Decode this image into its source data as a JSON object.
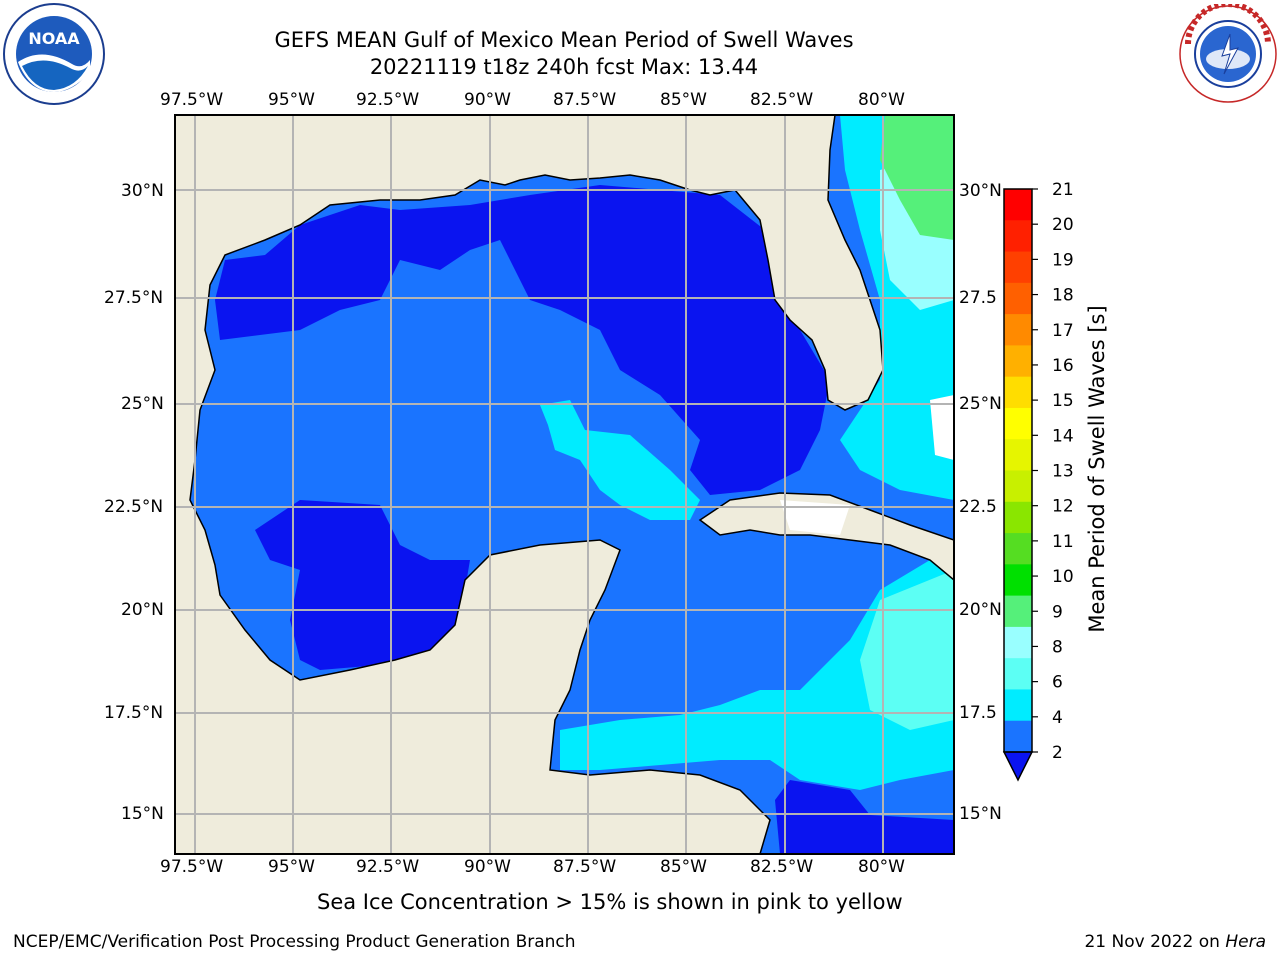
{
  "title": {
    "line1": "GEFS MEAN Gulf of Mexico Mean Period of Swell Waves",
    "line2": "20221119 t18z 240h fcst   Max: 13.44"
  },
  "logos": {
    "left": {
      "name": "noaa-logo",
      "text": "NOAA",
      "ring_text": "NATIONAL OCEANIC AND ATMOSPHERIC ADMINISTRATION · U.S. DEPARTMENT OF COMMERCE"
    },
    "right": {
      "name": "nws-logo",
      "ring_text": "NATIONAL WEATHER SERVICE"
    }
  },
  "map": {
    "lon_labels": [
      "97.5°W",
      "95°W",
      "92.5°W",
      "90°W",
      "87.5°W",
      "85°W",
      "82.5°W",
      "80°W"
    ],
    "lat_labels_left": [
      "30°N",
      "27.5°N",
      "25°N",
      "22.5°N",
      "20°N",
      "17.5°N",
      "15°N"
    ],
    "lat_labels_right": [
      "30°N",
      "27.5",
      "25°N",
      "22.5",
      "20°N",
      "17.5",
      "15°N"
    ],
    "extent": {
      "lon": [
        -98,
        -78.2
      ],
      "lat": [
        14.0,
        31.8
      ]
    },
    "colors": {
      "land": "#efecdc",
      "c2_4": "#1a74ff",
      "c_lt2": "#0a14f0",
      "c4_6": "#00ecff",
      "c6_8": "#5cfff4",
      "c8_9": "#99ffff",
      "c9_10": "#55f07a",
      "c10_11": "#00dd00",
      "c13_14": "#d8f000",
      "grid": "#b4b4b4"
    }
  },
  "colorbar": {
    "label": "Mean Period of Swell Waves [s]",
    "ticks": [
      "21",
      "20",
      "19",
      "18",
      "17",
      "16",
      "15",
      "14",
      "13",
      "12",
      "11",
      "10",
      "9",
      "8",
      "6",
      "4",
      "2"
    ],
    "colors": [
      "#ff0000",
      "#ff2000",
      "#ff4000",
      "#ff6000",
      "#ff8a00",
      "#ffb000",
      "#ffdd00",
      "#ffff00",
      "#e6f500",
      "#c8f000",
      "#8ae600",
      "#55dd22",
      "#00e000",
      "#55f07a",
      "#99ffff",
      "#5cfff4",
      "#00ecff",
      "#1a74ff",
      "#0a14f0"
    ]
  },
  "caption": "Sea Ice Concentration > 15% is shown in pink to yellow",
  "footer": {
    "left": "NCEP/EMC/Verification Post Processing Product Generation Branch",
    "right_prefix": "21 Nov 2022 on ",
    "right_host": "Hera"
  }
}
